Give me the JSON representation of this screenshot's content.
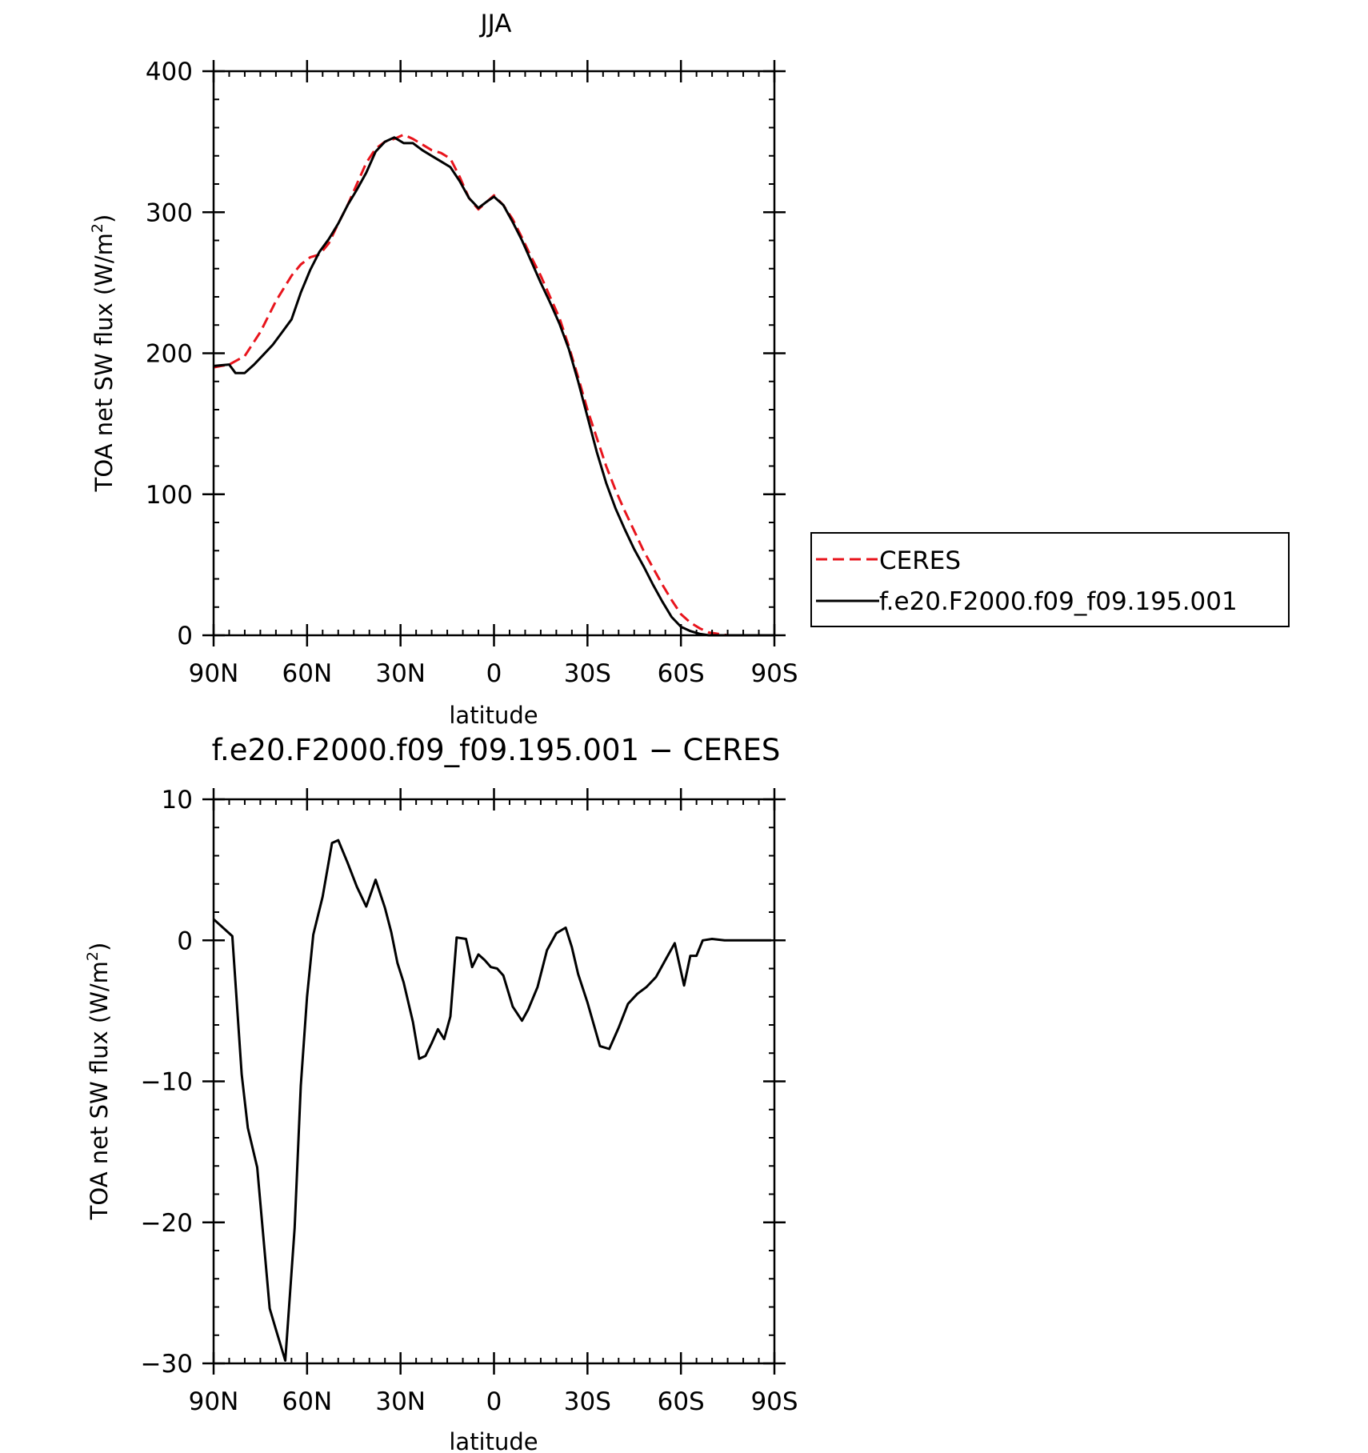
{
  "chart_data": [
    {
      "type": "line",
      "title": "JJA",
      "xlabel": "latitude",
      "ylabel": "TOA net SW flux (W/m²)",
      "ylabel_main": "TOA net SW flux (W/m",
      "ylabel_sup": "2",
      "ylabel_close": ")",
      "xlim": [
        90,
        -90
      ],
      "ylim": [
        0,
        400
      ],
      "x_ticks": [
        {
          "value": 90,
          "label": "90N"
        },
        {
          "value": 60,
          "label": "60N"
        },
        {
          "value": 30,
          "label": "30N"
        },
        {
          "value": 0,
          "label": "0"
        },
        {
          "value": -30,
          "label": "30S"
        },
        {
          "value": -60,
          "label": "60S"
        },
        {
          "value": -90,
          "label": "90S"
        }
      ],
      "y_ticks": [
        {
          "value": 0,
          "label": "0"
        },
        {
          "value": 100,
          "label": "100"
        },
        {
          "value": 200,
          "label": "200"
        },
        {
          "value": 300,
          "label": "300"
        },
        {
          "value": 400,
          "label": "400"
        }
      ],
      "grid": false,
      "legend_position": "outside-right",
      "series": [
        {
          "name": "CERES",
          "color": "#e8141c",
          "dash": "dashed",
          "x": [
            90,
            85,
            80,
            75,
            70,
            65,
            62,
            59,
            56,
            53,
            50,
            47,
            44,
            41,
            38,
            35,
            32,
            29,
            26,
            23,
            20,
            17,
            14,
            11,
            8,
            5,
            2,
            0,
            -3,
            -6,
            -9,
            -12,
            -15,
            -18,
            -21,
            -24,
            -27,
            -30,
            -33,
            -36,
            -39,
            -42,
            -45,
            -48,
            -51,
            -54,
            -57,
            -60,
            -63,
            -66,
            -69,
            -72,
            -75,
            -78,
            -81,
            -84,
            -87,
            -90
          ],
          "values": [
            190,
            192,
            198,
            215,
            237,
            255,
            263,
            268,
            270,
            278,
            292,
            305,
            320,
            335,
            345,
            350,
            352,
            355,
            352,
            348,
            344,
            342,
            338,
            325,
            310,
            302,
            308,
            312,
            305,
            295,
            282,
            268,
            255,
            240,
            225,
            205,
            183,
            160,
            140,
            120,
            103,
            88,
            74,
            60,
            48,
            36,
            25,
            15,
            9,
            5,
            2,
            1,
            0,
            0,
            0,
            0,
            0,
            0
          ]
        },
        {
          "name": "f.e20.F2000.f09_f09.195.001",
          "color": "#000000",
          "dash": "solid",
          "x": [
            90,
            85,
            83,
            80,
            77,
            74,
            71,
            68,
            65,
            62,
            59,
            56,
            53,
            50,
            47,
            44,
            41,
            38,
            35,
            32,
            29,
            26,
            23,
            20,
            17,
            14,
            11,
            8,
            5,
            2,
            0,
            -3,
            -6,
            -9,
            -12,
            -15,
            -18,
            -21,
            -24,
            -27,
            -30,
            -33,
            -36,
            -39,
            -42,
            -45,
            -48,
            -51,
            -54,
            -57,
            -60,
            -63,
            -66,
            -69,
            -72,
            -75,
            -78,
            -81,
            -84,
            -87,
            -90
          ],
          "values": [
            191,
            192,
            186,
            186,
            192,
            199,
            206,
            215,
            224,
            243,
            259,
            272,
            281,
            292,
            305,
            316,
            328,
            343,
            350,
            353,
            349,
            349,
            344,
            340,
            336,
            332,
            322,
            310,
            303,
            308,
            311,
            305,
            293,
            280,
            265,
            250,
            236,
            221,
            203,
            180,
            155,
            130,
            108,
            90,
            75,
            61,
            49,
            36,
            24,
            13,
            6,
            3,
            1,
            0,
            0,
            0,
            0,
            0,
            0,
            0,
            0
          ]
        }
      ]
    },
    {
      "type": "line",
      "title": "f.e20.F2000.f09_f09.195.001 − CERES",
      "xlabel": "latitude",
      "ylabel": "TOA net SW flux (W/m²)",
      "ylabel_main": "TOA net SW flux (W/m",
      "ylabel_sup": "2",
      "ylabel_close": ")",
      "xlim": [
        90,
        -90
      ],
      "ylim": [
        -30,
        10
      ],
      "x_ticks": [
        {
          "value": 90,
          "label": "90N"
        },
        {
          "value": 60,
          "label": "60N"
        },
        {
          "value": 30,
          "label": "30N"
        },
        {
          "value": 0,
          "label": "0"
        },
        {
          "value": -30,
          "label": "30S"
        },
        {
          "value": -60,
          "label": "60S"
        },
        {
          "value": -90,
          "label": "90S"
        }
      ],
      "y_ticks": [
        {
          "value": -30,
          "label": "−30"
        },
        {
          "value": -20,
          "label": "−20"
        },
        {
          "value": -10,
          "label": "−10"
        },
        {
          "value": 0,
          "label": "0"
        },
        {
          "value": 10,
          "label": "10"
        }
      ],
      "grid": false,
      "series": [
        {
          "color": "#000000",
          "dash": "solid",
          "x": [
            90,
            84,
            81,
            79,
            76,
            72,
            70,
            67,
            64,
            62,
            60,
            58,
            55,
            52,
            50,
            47,
            44,
            41,
            38,
            35,
            33,
            31,
            29,
            26,
            24,
            22,
            20,
            18,
            16,
            14,
            12,
            9,
            7,
            5,
            3,
            1,
            -1,
            -3,
            -6,
            -9,
            -11,
            -14,
            -17,
            -20,
            -23,
            -25,
            -27,
            -30,
            -34,
            -37,
            -40,
            -43,
            -46,
            -49,
            -52,
            -55,
            -58,
            -61,
            -63,
            -65,
            -67,
            -70,
            -74,
            -77,
            -80,
            -83,
            -86,
            -89
          ],
          "values": [
            1.5,
            0.3,
            -9.5,
            -13.3,
            -16.1,
            -26.1,
            -27.6,
            -29.8,
            -20.4,
            -10.3,
            -4.0,
            0.4,
            3.1,
            6.9,
            7.1,
            5.5,
            3.8,
            2.4,
            4.3,
            2.3,
            0.6,
            -1.6,
            -3.0,
            -5.8,
            -8.4,
            -8.2,
            -7.3,
            -6.3,
            -7.0,
            -5.4,
            0.2,
            0.1,
            -1.9,
            -1.0,
            -1.4,
            -1.9,
            -2.0,
            -2.5,
            -4.7,
            -5.7,
            -4.9,
            -3.3,
            -0.7,
            0.5,
            0.9,
            -0.5,
            -2.4,
            -4.4,
            -7.5,
            -7.7,
            -6.2,
            -4.5,
            -3.8,
            -3.3,
            -2.6,
            -1.4,
            -0.2,
            -3.2,
            -1.1,
            -1.1,
            0.0,
            0.1,
            0.0,
            0.0,
            0.0,
            0.0,
            0.0,
            0.0
          ]
        }
      ]
    }
  ]
}
